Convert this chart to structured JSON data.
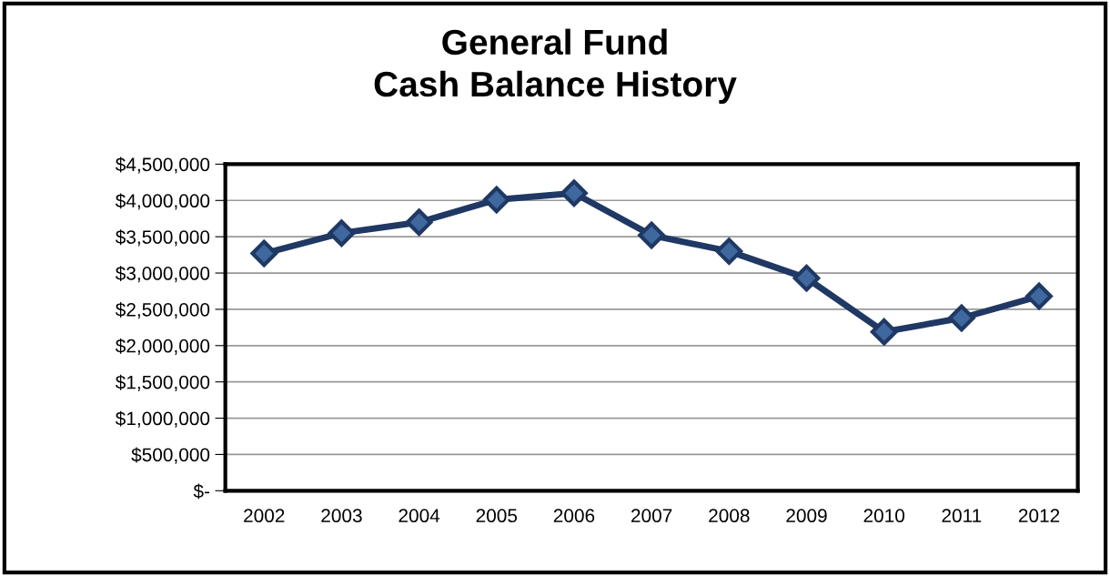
{
  "chart_data": {
    "type": "line",
    "title": "General Fund\nCash Balance History",
    "categories": [
      "2002",
      "2003",
      "2004",
      "2005",
      "2006",
      "2007",
      "2008",
      "2009",
      "2010",
      "2011",
      "2012"
    ],
    "series": [
      {
        "color": "#1f3864",
        "values": [
          3270000,
          3550000,
          3700000,
          4010000,
          4100000,
          3520000,
          3300000,
          2930000,
          2190000,
          2380000,
          2680000
        ]
      }
    ],
    "ylim": [
      0,
      4500000
    ],
    "yticks": [
      {
        "value": 0,
        "label": "$-"
      },
      {
        "value": 500000,
        "label": "$500,000"
      },
      {
        "value": 1000000,
        "label": "$1,000,000"
      },
      {
        "value": 1500000,
        "label": "$1,500,000"
      },
      {
        "value": 2000000,
        "label": "$2,000,000"
      },
      {
        "value": 2500000,
        "label": "$2,500,000"
      },
      {
        "value": 3000000,
        "label": "$3,000,000"
      },
      {
        "value": 3500000,
        "label": "$3,500,000"
      },
      {
        "value": 4000000,
        "label": "$4,000,000"
      },
      {
        "value": 4500000,
        "label": "$4,500,000"
      }
    ],
    "grid": "y",
    "marker": "diamond",
    "line_style": "solid"
  }
}
